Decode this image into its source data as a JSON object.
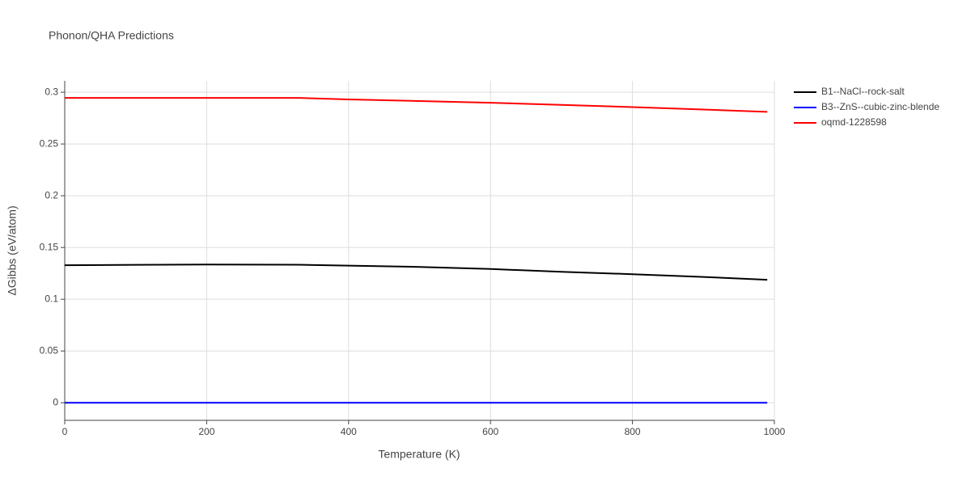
{
  "chart_data": {
    "type": "line",
    "title": "Phonon/QHA Predictions",
    "x_label": "Temperature (K)",
    "y_label": "ΔGibbs (eV/atom)",
    "x": [
      0,
      100,
      200,
      330,
      400,
      500,
      600,
      700,
      800,
      900,
      990
    ],
    "series": [
      {
        "name": "B1--NaCl--rock-salt",
        "color": "#000000",
        "values": [
          0.1328,
          0.1332,
          0.1335,
          0.1333,
          0.1325,
          0.1312,
          0.1292,
          0.1265,
          0.1242,
          0.1215,
          0.1188
        ]
      },
      {
        "name": "B3--ZnS--cubic-zinc-blende",
        "color": "#0000ff",
        "values": [
          0,
          0,
          0,
          0,
          0,
          0,
          0,
          0,
          0,
          0,
          0
        ]
      },
      {
        "name": "oqmd-1228598",
        "color": "#ff0000",
        "values": [
          0.2945,
          0.2945,
          0.2945,
          0.2945,
          0.293,
          0.2915,
          0.2898,
          0.2878,
          0.2856,
          0.2833,
          0.281
        ]
      }
    ],
    "xlim": [
      0,
      1000
    ],
    "xticks": [
      0,
      200,
      400,
      600,
      800,
      1000
    ],
    "ylim": [
      -0.017,
      0.311
    ],
    "yticks": [
      0,
      0.05,
      0.1,
      0.15,
      0.2,
      0.25,
      0.3
    ],
    "grid": true,
    "legend": "right"
  }
}
